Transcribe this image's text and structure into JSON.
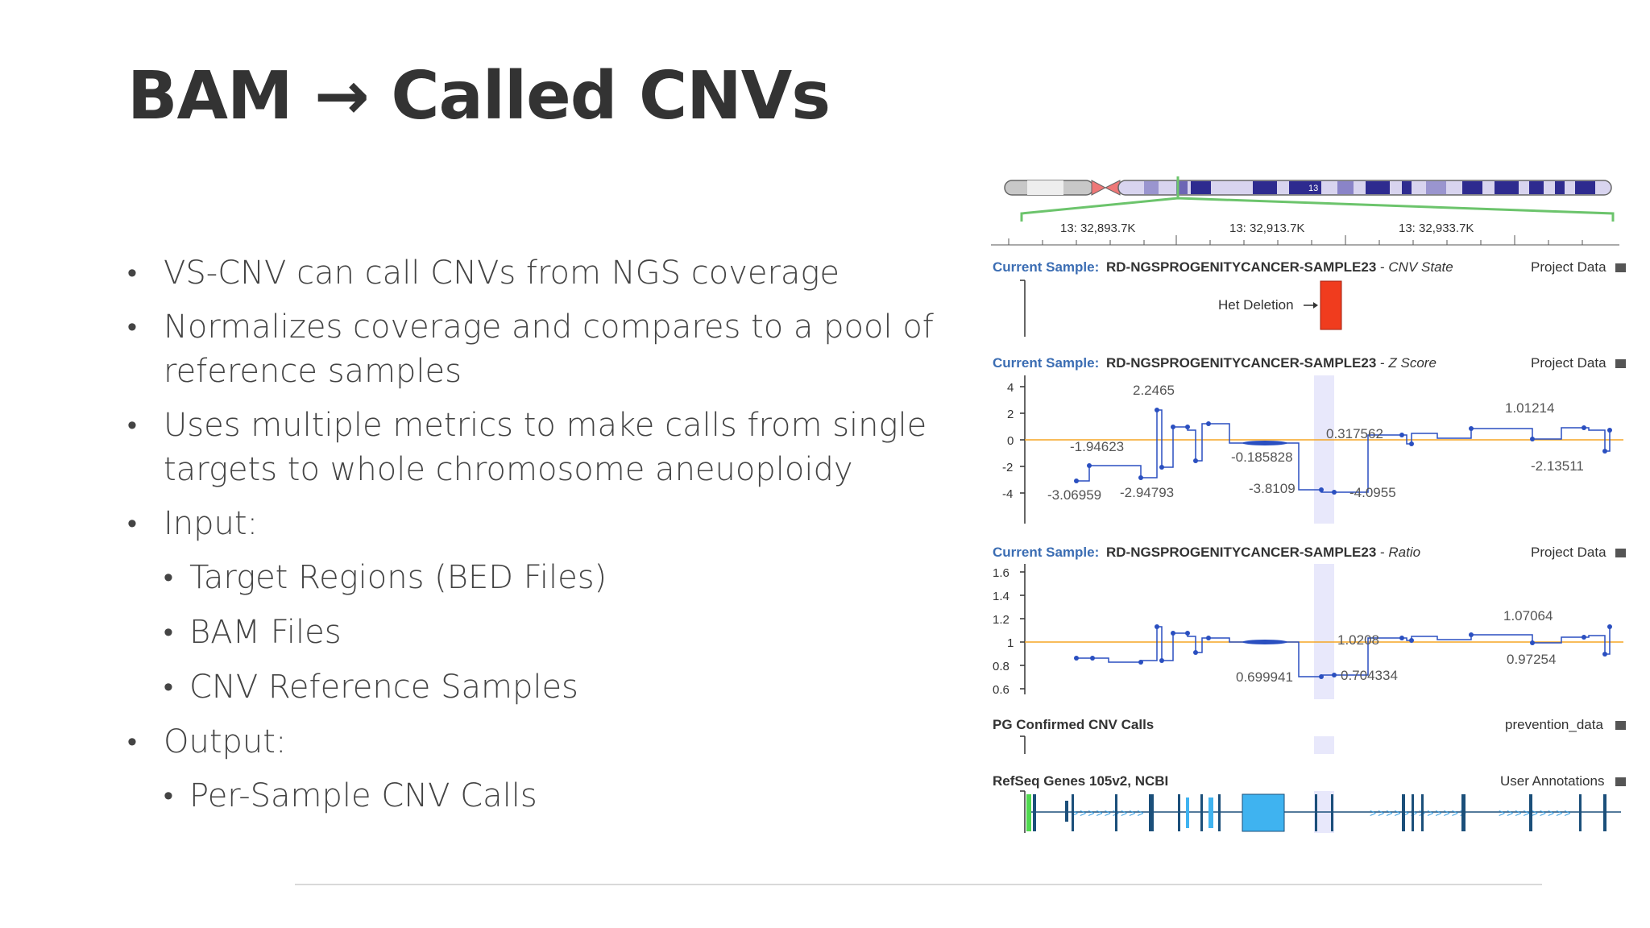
{
  "title": "BAM → Called CNVs",
  "bullets": [
    {
      "text": "VS-CNV can call CNVs from NGS coverage",
      "level": 1
    },
    {
      "text": "Normalizes coverage and compares to a pool of reference samples",
      "level": 1
    },
    {
      "text": "Uses multiple metrics to make calls from single targets to whole chromosome aneuoploidy",
      "level": 1
    },
    {
      "text": "Input:",
      "level": 1
    },
    {
      "text": "Target Regions (BED Files)",
      "level": 2
    },
    {
      "text": "BAM Files",
      "level": 2
    },
    {
      "text": "CNV Reference Samples",
      "level": 2
    },
    {
      "text": "Output:",
      "level": 1
    },
    {
      "text": "Per-Sample CNV Calls",
      "level": 2
    }
  ],
  "viewer": {
    "chromosome_label": "13",
    "ruler_labels": [
      "13: 32,893.7K",
      "13: 32,913.7K",
      "13: 32,933.7K"
    ],
    "tracks": {
      "cnv_state": {
        "prefix": "Current Sample:",
        "sample": "RD-NGSPROGENITYCANCER-SAMPLE23",
        "separator": " - ",
        "metric": "CNV State",
        "source": "Project Data",
        "event_label": "Het Deletion",
        "event_color": "#f03c1e"
      },
      "zscore": {
        "prefix": "Current Sample:",
        "sample": "RD-NGSPROGENITYCANCER-SAMPLE23",
        "separator": " - ",
        "metric": "Z Score",
        "source": "Project Data",
        "y_ticks": [
          "4",
          "2",
          "0",
          "-2",
          "-4"
        ],
        "labels": [
          "2.2465",
          "-1.94623",
          "-3.06959",
          "-2.94793",
          "-0.185828",
          "-3.8109",
          "-4.0955",
          "0.317562",
          "1.01214",
          "-2.13511"
        ]
      },
      "ratio": {
        "prefix": "Current Sample:",
        "sample": "RD-NGSPROGENITYCANCER-SAMPLE23",
        "separator": " - ",
        "metric": "Ratio",
        "source": "Project Data",
        "y_ticks": [
          "1.6",
          "1.4",
          "1.2",
          "1",
          "0.8",
          "0.6"
        ],
        "labels": [
          "1.0208",
          "0.699941",
          "0.704334",
          "1.07064",
          "0.97254"
        ]
      },
      "confirmed": {
        "title": "PG Confirmed CNV Calls",
        "source": "prevention_data"
      },
      "refseq": {
        "title": "RefSeq Genes 105v2, NCBI",
        "source": "User Annotations"
      }
    },
    "colors": {
      "header_blue": "#3b6db3",
      "trace_blue": "#2a4fc0",
      "baseline_orange": "#f5a623",
      "gene_blue": "#1b4f7a",
      "exon_light": "#3fb3f0",
      "gene_green": "#4fd84f",
      "chrom_band": "#2e2b8f",
      "zoom_green": "#6cc46c"
    }
  }
}
